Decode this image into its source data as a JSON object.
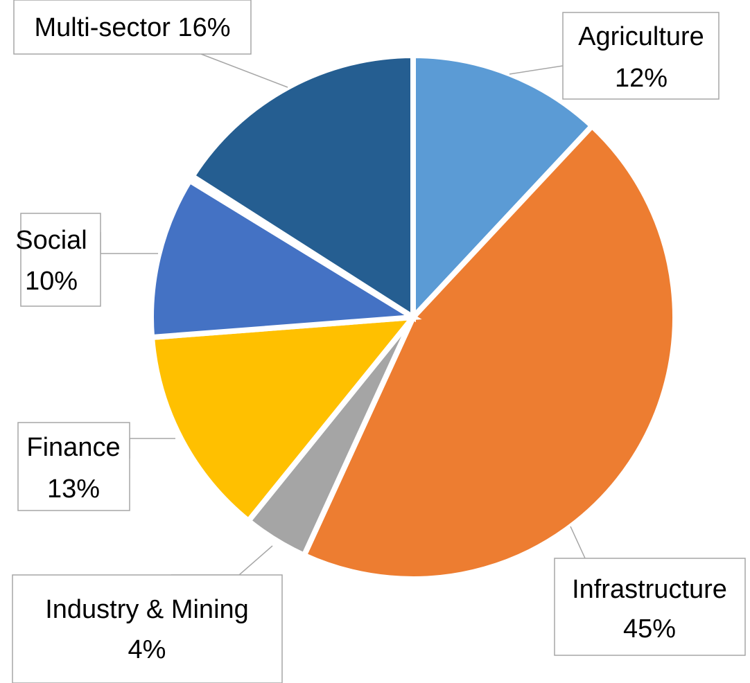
{
  "chart_data": {
    "type": "pie",
    "categories": [
      "Agriculture",
      "Infrastructure",
      "Industry & Mining",
      "Finance",
      "Social",
      null,
      "Multi-sector"
    ],
    "values": [
      12,
      45,
      4,
      13,
      10,
      0.3,
      16
    ],
    "value_labels": [
      "12%",
      "45%",
      "4%",
      "13%",
      "10%",
      null,
      "16%"
    ],
    "colors": [
      "#5b9bd5",
      "#ed7d31",
      "#a5a5a5",
      "#ffc000",
      "#4472c4",
      "#70ad47",
      "#255e91"
    ]
  }
}
